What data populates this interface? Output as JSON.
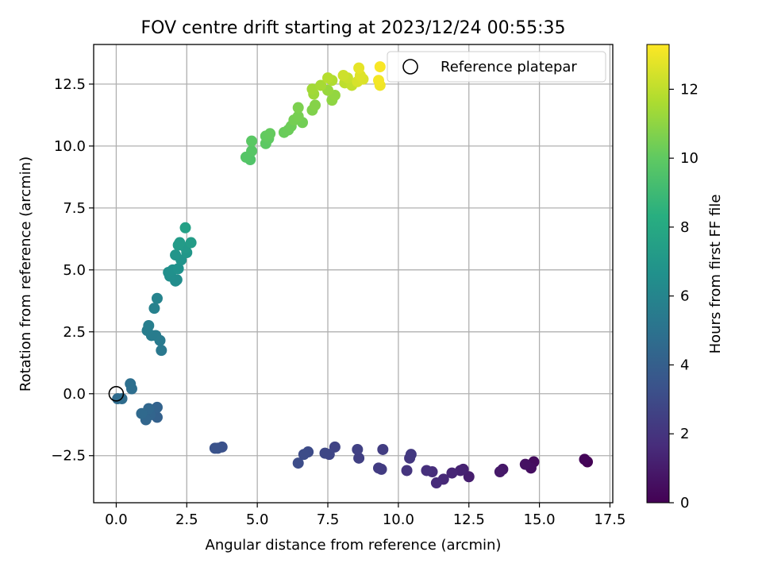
{
  "chart_data": {
    "type": "scatter",
    "title": "FOV centre drift starting at 2023/12/24 00:55:35",
    "xlabel": "Angular distance from reference (arcmin)",
    "ylabel": "Rotation from reference (arcmin)",
    "xlim": [
      -0.8,
      17.6
    ],
    "ylim": [
      -4.4,
      14.1
    ],
    "xticks": [
      0.0,
      2.5,
      5.0,
      7.5,
      10.0,
      12.5,
      15.0,
      17.5
    ],
    "xtick_labels": [
      "0.0",
      "2.5",
      "5.0",
      "7.5",
      "10.0",
      "12.5",
      "15.0",
      "17.5"
    ],
    "yticks": [
      -2.5,
      0.0,
      2.5,
      5.0,
      7.5,
      10.0,
      12.5
    ],
    "ytick_labels": [
      "−2.5",
      "0.0",
      "2.5",
      "5.0",
      "7.5",
      "10.0",
      "12.5"
    ],
    "grid": true,
    "legend": {
      "position": "top-right",
      "entries": [
        "Reference platepar"
      ]
    },
    "reference_point": {
      "x": 0.0,
      "y": 0.0,
      "label": "Reference platepar"
    },
    "colorbar": {
      "label": "Hours from first FF file",
      "range": [
        0,
        13.3
      ],
      "ticks": [
        0,
        2,
        4,
        6,
        8,
        10,
        12
      ],
      "tick_labels": [
        "0",
        "2",
        "4",
        "6",
        "8",
        "10",
        "12"
      ],
      "colormap": "viridis"
    },
    "points": [
      {
        "x": 16.7,
        "y": -2.75,
        "h": 0.05
      },
      {
        "x": 16.6,
        "y": -2.65,
        "h": 0.15
      },
      {
        "x": 14.8,
        "y": -2.75,
        "h": 0.4
      },
      {
        "x": 14.7,
        "y": -3.0,
        "h": 0.5
      },
      {
        "x": 14.5,
        "y": -2.85,
        "h": 0.6
      },
      {
        "x": 13.7,
        "y": -3.05,
        "h": 0.8
      },
      {
        "x": 13.6,
        "y": -3.15,
        "h": 0.9
      },
      {
        "x": 12.5,
        "y": -3.35,
        "h": 1.1
      },
      {
        "x": 12.3,
        "y": -3.05,
        "h": 1.2
      },
      {
        "x": 12.2,
        "y": -3.1,
        "h": 1.3
      },
      {
        "x": 11.9,
        "y": -3.2,
        "h": 1.4
      },
      {
        "x": 11.6,
        "y": -3.45,
        "h": 1.5
      },
      {
        "x": 11.35,
        "y": -3.6,
        "h": 1.6
      },
      {
        "x": 11.2,
        "y": -3.15,
        "h": 1.7
      },
      {
        "x": 11.0,
        "y": -3.1,
        "h": 1.8
      },
      {
        "x": 10.3,
        "y": -3.1,
        "h": 2.0
      },
      {
        "x": 10.4,
        "y": -2.6,
        "h": 2.1
      },
      {
        "x": 10.45,
        "y": -2.45,
        "h": 2.2
      },
      {
        "x": 9.4,
        "y": -3.05,
        "h": 2.3
      },
      {
        "x": 9.3,
        "y": -3.0,
        "h": 2.35
      },
      {
        "x": 9.45,
        "y": -2.25,
        "h": 2.4
      },
      {
        "x": 8.6,
        "y": -2.6,
        "h": 2.5
      },
      {
        "x": 8.55,
        "y": -2.25,
        "h": 2.55
      },
      {
        "x": 7.75,
        "y": -2.15,
        "h": 2.7
      },
      {
        "x": 7.55,
        "y": -2.45,
        "h": 2.8
      },
      {
        "x": 7.4,
        "y": -2.4,
        "h": 2.85
      },
      {
        "x": 6.8,
        "y": -2.35,
        "h": 3.0
      },
      {
        "x": 6.65,
        "y": -2.45,
        "h": 3.05
      },
      {
        "x": 6.45,
        "y": -2.8,
        "h": 3.1
      },
      {
        "x": 3.75,
        "y": -2.15,
        "h": 3.3
      },
      {
        "x": 3.6,
        "y": -2.2,
        "h": 3.35
      },
      {
        "x": 3.5,
        "y": -2.2,
        "h": 3.4
      },
      {
        "x": 1.45,
        "y": -0.95,
        "h": 4.1
      },
      {
        "x": 1.45,
        "y": -0.55,
        "h": 4.2
      },
      {
        "x": 1.2,
        "y": -0.85,
        "h": 4.3
      },
      {
        "x": 1.05,
        "y": -1.05,
        "h": 4.35
      },
      {
        "x": 1.15,
        "y": -0.6,
        "h": 4.4
      },
      {
        "x": 0.9,
        "y": -0.8,
        "h": 4.5
      },
      {
        "x": 0.05,
        "y": -0.2,
        "h": 4.6
      },
      {
        "x": 0.2,
        "y": -0.2,
        "h": 4.65
      },
      {
        "x": 0.55,
        "y": 0.2,
        "h": 4.8
      },
      {
        "x": 0.5,
        "y": 0.4,
        "h": 4.85
      },
      {
        "x": 1.6,
        "y": 1.75,
        "h": 5.3
      },
      {
        "x": 1.55,
        "y": 2.15,
        "h": 5.4
      },
      {
        "x": 1.4,
        "y": 2.35,
        "h": 5.5
      },
      {
        "x": 1.25,
        "y": 2.35,
        "h": 5.55
      },
      {
        "x": 1.1,
        "y": 2.55,
        "h": 5.6
      },
      {
        "x": 1.15,
        "y": 2.75,
        "h": 5.65
      },
      {
        "x": 1.35,
        "y": 3.45,
        "h": 5.8
      },
      {
        "x": 1.45,
        "y": 3.85,
        "h": 5.9
      },
      {
        "x": 2.1,
        "y": 4.55,
        "h": 6.4
      },
      {
        "x": 2.15,
        "y": 4.6,
        "h": 6.45
      },
      {
        "x": 1.9,
        "y": 4.75,
        "h": 6.5
      },
      {
        "x": 1.85,
        "y": 4.9,
        "h": 6.55
      },
      {
        "x": 2.0,
        "y": 5.0,
        "h": 6.6
      },
      {
        "x": 2.2,
        "y": 5.05,
        "h": 6.7
      },
      {
        "x": 2.3,
        "y": 5.4,
        "h": 6.8
      },
      {
        "x": 2.1,
        "y": 5.6,
        "h": 6.9
      },
      {
        "x": 2.5,
        "y": 5.7,
        "h": 7.0
      },
      {
        "x": 2.45,
        "y": 5.9,
        "h": 7.1
      },
      {
        "x": 2.2,
        "y": 6.0,
        "h": 7.2
      },
      {
        "x": 2.25,
        "y": 6.1,
        "h": 7.25
      },
      {
        "x": 2.65,
        "y": 6.1,
        "h": 7.3
      },
      {
        "x": 2.45,
        "y": 6.7,
        "h": 7.5
      },
      {
        "x": 4.75,
        "y": 9.45,
        "h": 9.6
      },
      {
        "x": 4.6,
        "y": 9.55,
        "h": 9.7
      },
      {
        "x": 4.8,
        "y": 9.8,
        "h": 9.75
      },
      {
        "x": 4.8,
        "y": 10.2,
        "h": 9.85
      },
      {
        "x": 5.3,
        "y": 10.1,
        "h": 9.9
      },
      {
        "x": 5.4,
        "y": 10.3,
        "h": 10.0
      },
      {
        "x": 5.3,
        "y": 10.4,
        "h": 10.05
      },
      {
        "x": 5.45,
        "y": 10.5,
        "h": 10.1
      },
      {
        "x": 5.95,
        "y": 10.55,
        "h": 10.2
      },
      {
        "x": 6.1,
        "y": 10.65,
        "h": 10.25
      },
      {
        "x": 6.2,
        "y": 10.8,
        "h": 10.3
      },
      {
        "x": 6.6,
        "y": 10.95,
        "h": 10.4
      },
      {
        "x": 6.3,
        "y": 11.05,
        "h": 10.45
      },
      {
        "x": 6.45,
        "y": 11.2,
        "h": 10.5
      },
      {
        "x": 6.45,
        "y": 11.55,
        "h": 10.6
      },
      {
        "x": 6.95,
        "y": 11.45,
        "h": 10.7
      },
      {
        "x": 7.05,
        "y": 11.65,
        "h": 10.8
      },
      {
        "x": 7.65,
        "y": 11.85,
        "h": 11.0
      },
      {
        "x": 7.75,
        "y": 12.05,
        "h": 11.1
      },
      {
        "x": 7.5,
        "y": 12.25,
        "h": 11.2
      },
      {
        "x": 7.0,
        "y": 12.1,
        "h": 11.3
      },
      {
        "x": 6.95,
        "y": 12.3,
        "h": 11.4
      },
      {
        "x": 7.25,
        "y": 12.45,
        "h": 11.5
      },
      {
        "x": 7.65,
        "y": 12.65,
        "h": 11.7
      },
      {
        "x": 7.5,
        "y": 12.75,
        "h": 11.8
      },
      {
        "x": 8.1,
        "y": 12.55,
        "h": 12.0
      },
      {
        "x": 8.35,
        "y": 12.45,
        "h": 12.1
      },
      {
        "x": 8.2,
        "y": 12.75,
        "h": 12.2
      },
      {
        "x": 8.05,
        "y": 12.85,
        "h": 12.3
      },
      {
        "x": 8.55,
        "y": 12.6,
        "h": 12.5
      },
      {
        "x": 8.75,
        "y": 12.7,
        "h": 12.6
      },
      {
        "x": 8.65,
        "y": 12.85,
        "h": 12.65
      },
      {
        "x": 8.6,
        "y": 13.15,
        "h": 12.8
      },
      {
        "x": 9.35,
        "y": 12.45,
        "h": 13.0
      },
      {
        "x": 9.3,
        "y": 12.65,
        "h": 13.1
      },
      {
        "x": 9.35,
        "y": 13.2,
        "h": 13.2
      }
    ]
  }
}
